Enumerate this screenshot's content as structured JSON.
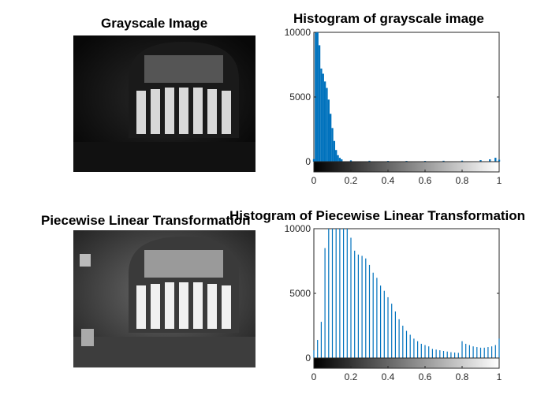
{
  "titles": {
    "top_left": "Grayscale Image",
    "top_right": "Histogram of grayscale image",
    "bottom_left": "Piecewise Linear Transformation",
    "bottom_right": "Histogram of Piecewise Linear Transformation"
  },
  "colors": {
    "bar": "#0072bd",
    "axis": "#262626"
  },
  "chart_data": [
    {
      "type": "bar",
      "title": "Histogram of grayscale image",
      "xlim": [
        0,
        1
      ],
      "ylim": [
        0,
        10000
      ],
      "x_ticks": [
        "0",
        "0.2",
        "0.4",
        "0.6",
        "0.8",
        "1"
      ],
      "y_ticks": [
        "0",
        "5000",
        "10000"
      ],
      "colorbar": "grayscale",
      "x": [
        0.0,
        0.01,
        0.02,
        0.03,
        0.04,
        0.05,
        0.06,
        0.07,
        0.08,
        0.09,
        0.1,
        0.11,
        0.12,
        0.13,
        0.14,
        0.15,
        0.2,
        0.3,
        0.4,
        0.5,
        0.6,
        0.7,
        0.8,
        0.9,
        0.95,
        0.98,
        1.0
      ],
      "values": [
        200,
        10000,
        10000,
        9000,
        7200,
        6800,
        6200,
        5700,
        4800,
        3700,
        2600,
        1600,
        900,
        500,
        300,
        180,
        100,
        70,
        60,
        60,
        60,
        70,
        80,
        120,
        180,
        300,
        150
      ]
    },
    {
      "type": "bar",
      "title": "Histogram of Piecewise Linear Transformation",
      "xlim": [
        0,
        1
      ],
      "ylim": [
        0,
        10000
      ],
      "x_ticks": [
        "0",
        "0.2",
        "0.4",
        "0.6",
        "0.8",
        "1"
      ],
      "y_ticks": [
        "0",
        "5000",
        "10000"
      ],
      "colorbar": "grayscale",
      "x": [
        0.0,
        0.02,
        0.04,
        0.06,
        0.08,
        0.1,
        0.12,
        0.14,
        0.16,
        0.18,
        0.2,
        0.22,
        0.24,
        0.26,
        0.28,
        0.3,
        0.32,
        0.34,
        0.36,
        0.38,
        0.4,
        0.42,
        0.44,
        0.46,
        0.48,
        0.5,
        0.52,
        0.54,
        0.56,
        0.58,
        0.6,
        0.62,
        0.64,
        0.66,
        0.68,
        0.7,
        0.72,
        0.74,
        0.76,
        0.78,
        0.8,
        0.82,
        0.84,
        0.86,
        0.88,
        0.9,
        0.92,
        0.94,
        0.96,
        0.98,
        1.0
      ],
      "values": [
        600,
        1400,
        2800,
        8500,
        10000,
        10000,
        10000,
        10000,
        10000,
        10000,
        9300,
        8300,
        8000,
        7900,
        7700,
        7200,
        6600,
        6200,
        5600,
        5200,
        4700,
        4200,
        3600,
        3000,
        2500,
        2100,
        1800,
        1500,
        1300,
        1100,
        1000,
        900,
        700,
        650,
        600,
        550,
        500,
        450,
        420,
        400,
        1300,
        1100,
        1000,
        900,
        850,
        800,
        800,
        850,
        900,
        1000,
        1500
      ]
    }
  ]
}
